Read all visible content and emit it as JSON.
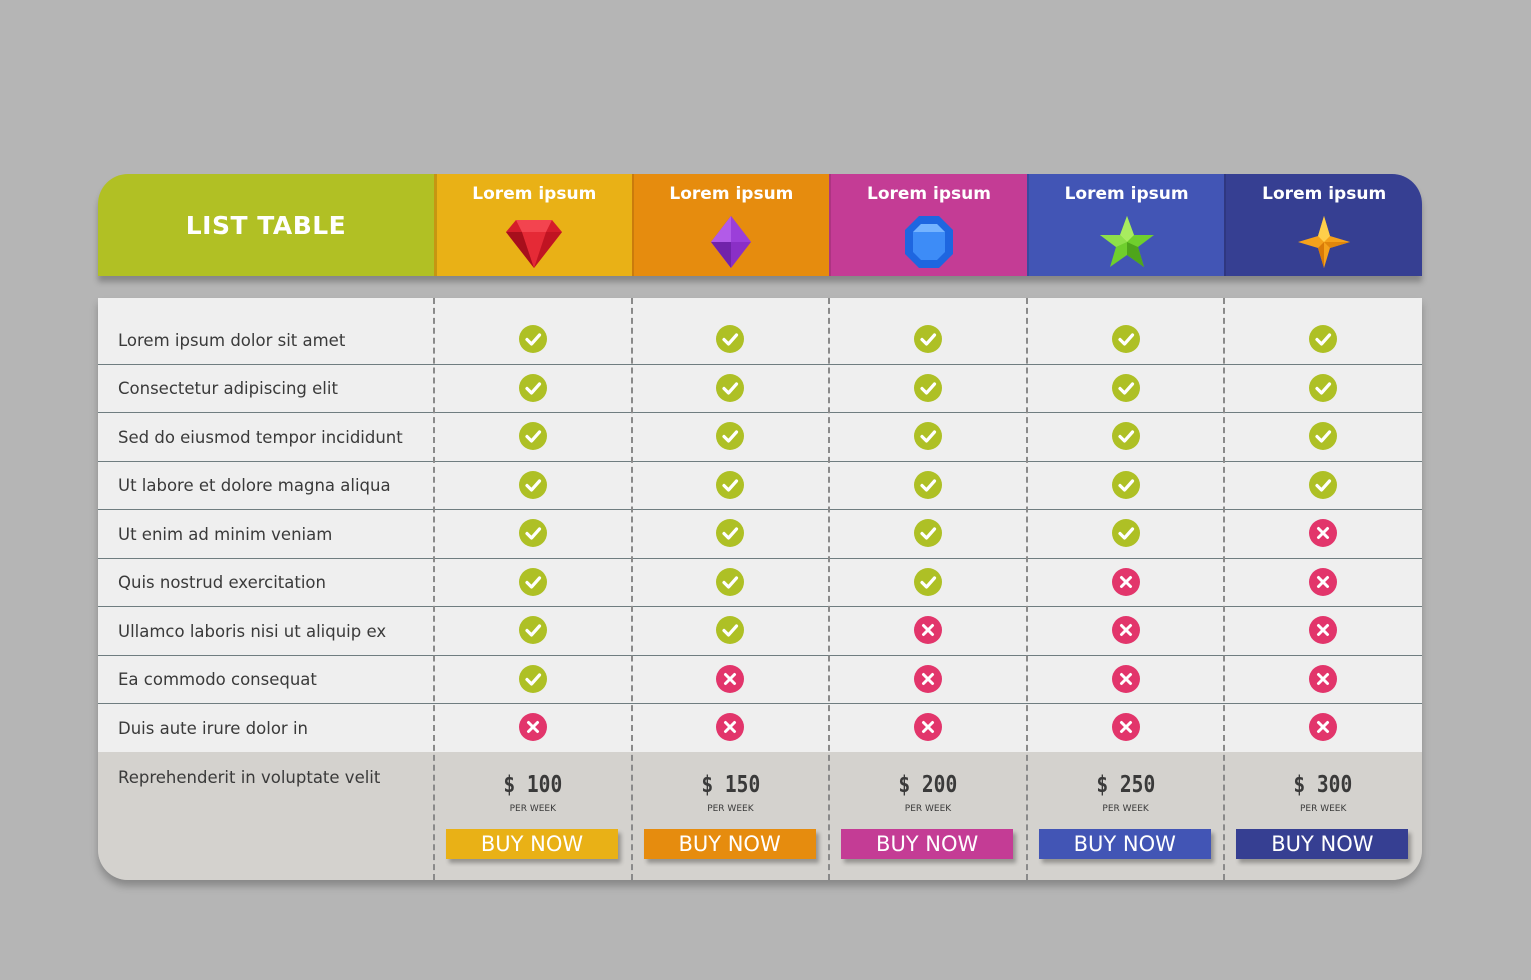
{
  "title": "LIST TABLE",
  "plans": [
    {
      "name": "Lorem ipsum",
      "icon": "red-ruby-icon",
      "color": "#e9b116",
      "button_color": "#e9b116",
      "price": "$ 100",
      "period": "PER WEEK",
      "buy_label": "BUY NOW"
    },
    {
      "name": "Lorem ipsum",
      "icon": "purple-crystal-icon",
      "color": "#e68c0e",
      "button_color": "#e68c0e",
      "price": "$ 150",
      "period": "PER WEEK",
      "buy_label": "BUY NOW"
    },
    {
      "name": "Lorem ipsum",
      "icon": "blue-octagon-gem-icon",
      "color": "#c43c95",
      "button_color": "#c43c95",
      "price": "$ 200",
      "period": "PER WEEK",
      "buy_label": "BUY NOW"
    },
    {
      "name": "Lorem ipsum",
      "icon": "green-star-icon",
      "color": "#4255b5",
      "button_color": "#4255b5",
      "price": "$ 250",
      "period": "PER WEEK",
      "buy_label": "BUY NOW"
    },
    {
      "name": "Lorem ipsum",
      "icon": "orange-sparkle-icon",
      "color": "#363f92",
      "button_color": "#363f92",
      "price": "$ 300",
      "period": "PER WEEK",
      "buy_label": "BUY NOW"
    }
  ],
  "features": [
    {
      "label": "Lorem ipsum dolor sit amet",
      "values": [
        true,
        true,
        true,
        true,
        true
      ]
    },
    {
      "label": "Consectetur adipiscing elit",
      "values": [
        true,
        true,
        true,
        true,
        true
      ]
    },
    {
      "label": "Sed do eiusmod tempor incididunt",
      "values": [
        true,
        true,
        true,
        true,
        true
      ]
    },
    {
      "label": "Ut labore et dolore magna aliqua",
      "values": [
        true,
        true,
        true,
        true,
        true
      ]
    },
    {
      "label": "Ut enim ad minim veniam",
      "values": [
        true,
        true,
        true,
        true,
        false
      ]
    },
    {
      "label": "Quis nostrud exercitation",
      "values": [
        true,
        true,
        true,
        false,
        false
      ]
    },
    {
      "label": "Ullamco laboris nisi ut aliquip ex",
      "values": [
        true,
        true,
        false,
        false,
        false
      ]
    },
    {
      "label": "Ea commodo consequat",
      "values": [
        true,
        false,
        false,
        false,
        false
      ]
    },
    {
      "label": "Duis aute irure dolor in",
      "values": [
        false,
        false,
        false,
        false,
        false
      ]
    }
  ],
  "price_label": "Reprehenderit in voluptate velit",
  "colors": {
    "background": "#b5b5b5",
    "title_bg": "#b1c024",
    "check": "#aec025",
    "cross": "#e2356b",
    "feature_bg": "#efefef",
    "price_bg": "#d4d2ce"
  }
}
